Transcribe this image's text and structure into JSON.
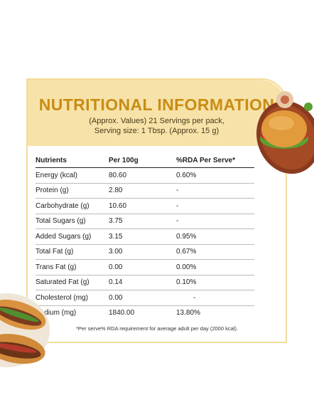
{
  "header": {
    "title": "NUTRITIONAL INFORMATION",
    "subtitle_line1": "(Approx. Values) 21 Servings per pack,",
    "subtitle_line2": "Serving size: 1 Tbsp. (Approx. 15 g)"
  },
  "table": {
    "columns": [
      "Nutrients",
      "Per 100g",
      "%RDA Per Serve*"
    ],
    "rows": [
      {
        "nutrient": "Energy (kcal)",
        "per100": "80.60",
        "rda": "0.60%"
      },
      {
        "nutrient": "Protein (g)",
        "per100": "2.80",
        "rda": "-"
      },
      {
        "nutrient": "Carbohydrate (g)",
        "per100": "10.60",
        "rda": "-"
      },
      {
        "nutrient": "Total Sugars (g)",
        "per100": "3.75",
        "rda": "-"
      },
      {
        "nutrient": "Added Sugars (g)",
        "per100": "3.15",
        "rda": "0.95%"
      },
      {
        "nutrient": "Total Fat (g)",
        "per100": "3.00",
        "rda": "0.67%"
      },
      {
        "nutrient": "Trans Fat (g)",
        "per100": "0.00",
        "rda": "0.00%"
      },
      {
        "nutrient": "Saturated Fat (g)",
        "per100": "0.14",
        "rda": "0.10%"
      },
      {
        "nutrient": "Cholesterol (mg)",
        "per100": "0.00",
        "rda": "-"
      },
      {
        "nutrient": "Sodium (mg)",
        "per100": "1840.00",
        "rda": "13.80%"
      }
    ]
  },
  "footnote": "*Per serve% RDA requirement for average adult per day (2000 kcal).",
  "colors": {
    "title": "#c98c14",
    "header_band": "#f7e3a9",
    "border": "#f3dc9b"
  }
}
